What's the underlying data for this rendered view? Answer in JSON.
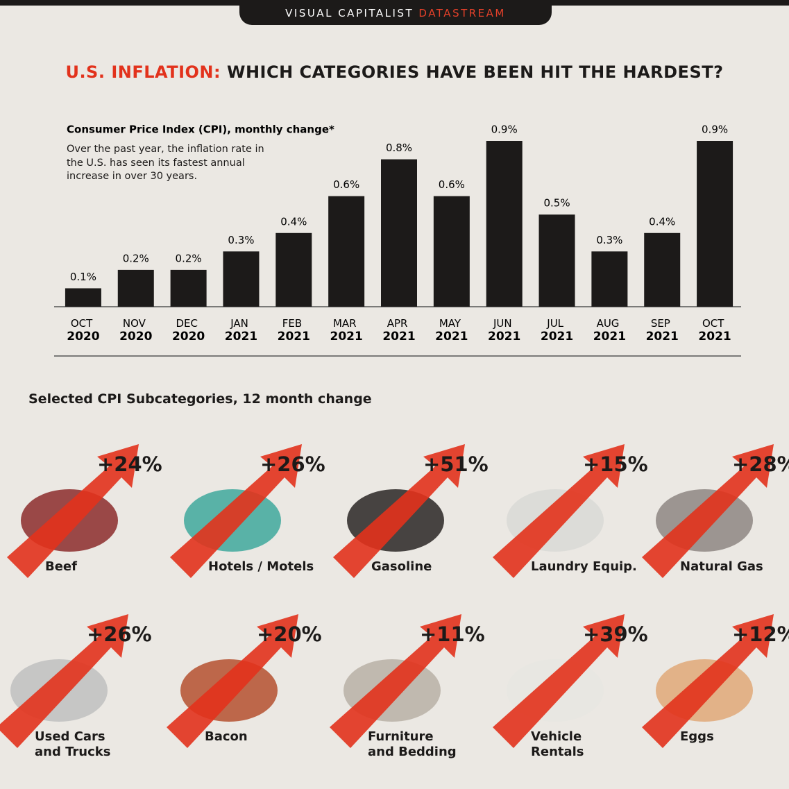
{
  "header": {
    "brand": "VISUAL CAPITALIST",
    "brand_accent": "DATASTREAM",
    "title_accent": "U.S. INFLATION:",
    "title": "WHICH CATEGORIES HAVE BEEN HIT THE HARDEST?"
  },
  "chart_data": {
    "type": "bar",
    "title": "Consumer Price Index (CPI), monthly change*",
    "subtitle": "Over the past year, the inflation rate in the U.S. has seen its fastest annual increase in over 30 years.",
    "categories": [
      "OCT 2020",
      "NOV 2020",
      "DEC 2020",
      "JAN 2021",
      "FEB 2021",
      "MAR 2021",
      "APR 2021",
      "MAY 2021",
      "JUN 2021",
      "JUL 2021",
      "AUG 2021",
      "SEP 2021",
      "OCT 2021"
    ],
    "values": [
      0.1,
      0.2,
      0.2,
      0.3,
      0.4,
      0.6,
      0.8,
      0.6,
      0.9,
      0.5,
      0.3,
      0.4,
      0.9
    ],
    "value_labels": [
      "0.1%",
      "0.2%",
      "0.2%",
      "0.3%",
      "0.4%",
      "0.6%",
      "0.8%",
      "0.6%",
      "0.9%",
      "0.5%",
      "0.3%",
      "0.4%",
      "0.9%"
    ],
    "color": "#1c1a19",
    "ylim": [
      0,
      0.9
    ]
  },
  "subcategories": {
    "title": "Selected CPI Subcategories, 12 month change",
    "items": [
      {
        "label": "Beef",
        "value": 24,
        "value_label": "+24%"
      },
      {
        "label": "Hotels / Motels",
        "value": 26,
        "value_label": "+26%"
      },
      {
        "label": "Gasoline",
        "value": 51,
        "value_label": "+51%"
      },
      {
        "label": "Laundry Equip.",
        "value": 15,
        "value_label": "+15%"
      },
      {
        "label": "Natural Gas",
        "value": 28,
        "value_label": "+28%"
      },
      {
        "label": "Used Cars and Trucks",
        "value": 26,
        "value_label": "+26%"
      },
      {
        "label": "Bacon",
        "value": 20,
        "value_label": "+20%"
      },
      {
        "label": "Furniture and Bedding",
        "value": 11,
        "value_label": "+11%"
      },
      {
        "label": "Vehicle Rentals",
        "value": 39,
        "value_label": "+39%"
      },
      {
        "label": "Eggs",
        "value": 12,
        "value_label": "+12%"
      }
    ]
  }
}
